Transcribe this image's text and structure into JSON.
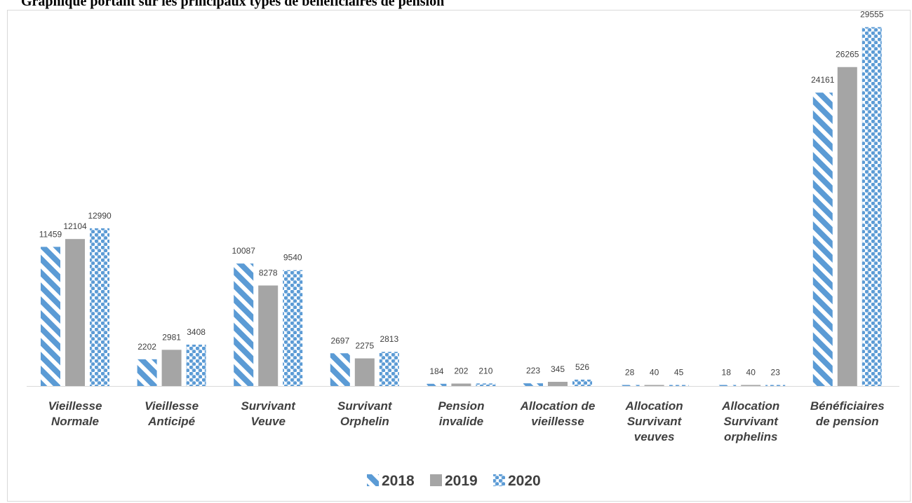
{
  "page": {
    "title": "Graphique portant sur les principaux types de bénéficiaires de pension"
  },
  "chart_data": {
    "type": "bar",
    "title": "",
    "xlabel": "",
    "ylabel": "",
    "ylim": [
      0,
      30000
    ],
    "grid": false,
    "legend_position": "bottom",
    "categories": [
      [
        "Vieillesse",
        "Normale"
      ],
      [
        "Vieillesse",
        "Anticipé"
      ],
      [
        "Survivant",
        "Veuve"
      ],
      [
        "Survivant",
        "Orphelin"
      ],
      [
        "Pension",
        "invalide"
      ],
      [
        "Allocation de",
        "vieillesse"
      ],
      [
        "Allocation",
        "Survivant",
        "veuves"
      ],
      [
        "Allocation",
        "Survivant",
        "orphelins"
      ],
      [
        "Bénéficiaires",
        "de pension"
      ]
    ],
    "series": [
      {
        "name": "2018",
        "pattern": "stripes",
        "color": "#5b9bd5",
        "values": [
          11459,
          2202,
          10087,
          2697,
          184,
          223,
          28,
          18,
          24161
        ]
      },
      {
        "name": "2019",
        "pattern": "solid",
        "color": "#a5a5a5",
        "values": [
          12104,
          2981,
          8278,
          2275,
          202,
          345,
          40,
          40,
          26265
        ]
      },
      {
        "name": "2020",
        "pattern": "checker",
        "color": "#5b9bd5",
        "values": [
          12990,
          3408,
          9540,
          2813,
          210,
          526,
          45,
          23,
          29555
        ]
      }
    ]
  }
}
